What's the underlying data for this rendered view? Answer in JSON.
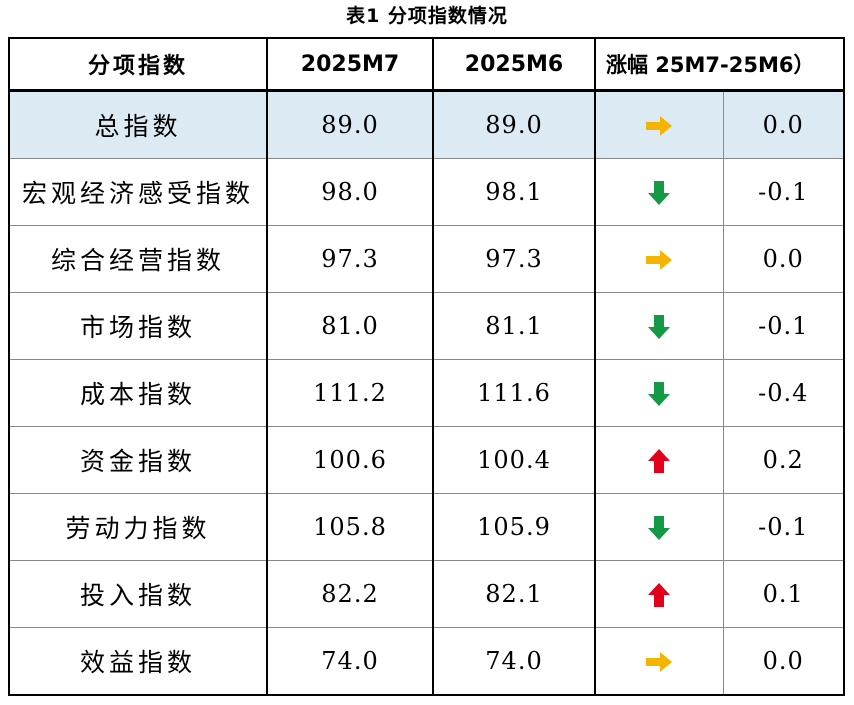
{
  "caption": "表1 分项指数情况",
  "colors": {
    "up": "#e3001b",
    "down": "#149a45",
    "flat": "#f5b400",
    "highlight_row": "#dcebf3"
  },
  "headers": {
    "name": "分项指数",
    "m7": "2025M7",
    "m6": "2025M6",
    "change": "涨幅 25M7-25M6）"
  },
  "rows": [
    {
      "name": "总指数",
      "m7": "89.0",
      "m6": "89.0",
      "trend": "flat",
      "trend_icon": "right-arrow-icon",
      "change": "0.0"
    },
    {
      "name": "宏观经济感受指数",
      "m7": "98.0",
      "m6": "98.1",
      "trend": "down",
      "trend_icon": "down-arrow-icon",
      "change": "-0.1"
    },
    {
      "name": "综合经营指数",
      "m7": "97.3",
      "m6": "97.3",
      "trend": "flat",
      "trend_icon": "right-arrow-icon",
      "change": "0.0"
    },
    {
      "name": "市场指数",
      "m7": "81.0",
      "m6": "81.1",
      "trend": "down",
      "trend_icon": "down-arrow-icon",
      "change": "-0.1"
    },
    {
      "name": "成本指数",
      "m7": "111.2",
      "m6": "111.6",
      "trend": "down",
      "trend_icon": "down-arrow-icon",
      "change": "-0.4"
    },
    {
      "name": "资金指数",
      "m7": "100.6",
      "m6": "100.4",
      "trend": "up",
      "trend_icon": "up-arrow-icon",
      "change": "0.2"
    },
    {
      "name": "劳动力指数",
      "m7": "105.8",
      "m6": "105.9",
      "trend": "down",
      "trend_icon": "down-arrow-icon",
      "change": "-0.1"
    },
    {
      "name": "投入指数",
      "m7": "82.2",
      "m6": "82.1",
      "trend": "up",
      "trend_icon": "up-arrow-icon",
      "change": "0.1"
    },
    {
      "name": "效益指数",
      "m7": "74.0",
      "m6": "74.0",
      "trend": "flat",
      "trend_icon": "right-arrow-icon",
      "change": "0.0"
    }
  ]
}
